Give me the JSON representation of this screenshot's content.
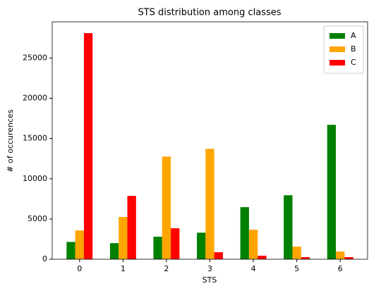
{
  "chart_data": {
    "type": "bar",
    "title": "STS distribution among classes",
    "x_label": "STS",
    "y_label": "# of occurences",
    "x": [
      0,
      1,
      2,
      3,
      4,
      5,
      6
    ],
    "xlim": [
      -0.63,
      6.63
    ],
    "xticks": [
      0,
      1,
      2,
      3,
      4,
      5,
      6
    ],
    "ylim": [
      0,
      29500
    ],
    "yticks": [
      0,
      5000,
      10000,
      15000,
      20000,
      25000
    ],
    "legend": "upper right",
    "series": [
      {
        "name": "A",
        "color": "#008000",
        "values": [
          2150,
          2000,
          2800,
          3300,
          6470,
          7950,
          16700
        ]
      },
      {
        "name": "B",
        "color": "#ffa500",
        "values": [
          3580,
          5250,
          12760,
          13720,
          3670,
          1570,
          960
        ]
      },
      {
        "name": "C",
        "color": "#ff0000",
        "values": [
          28100,
          7870,
          3850,
          870,
          440,
          260,
          260
        ]
      }
    ]
  }
}
